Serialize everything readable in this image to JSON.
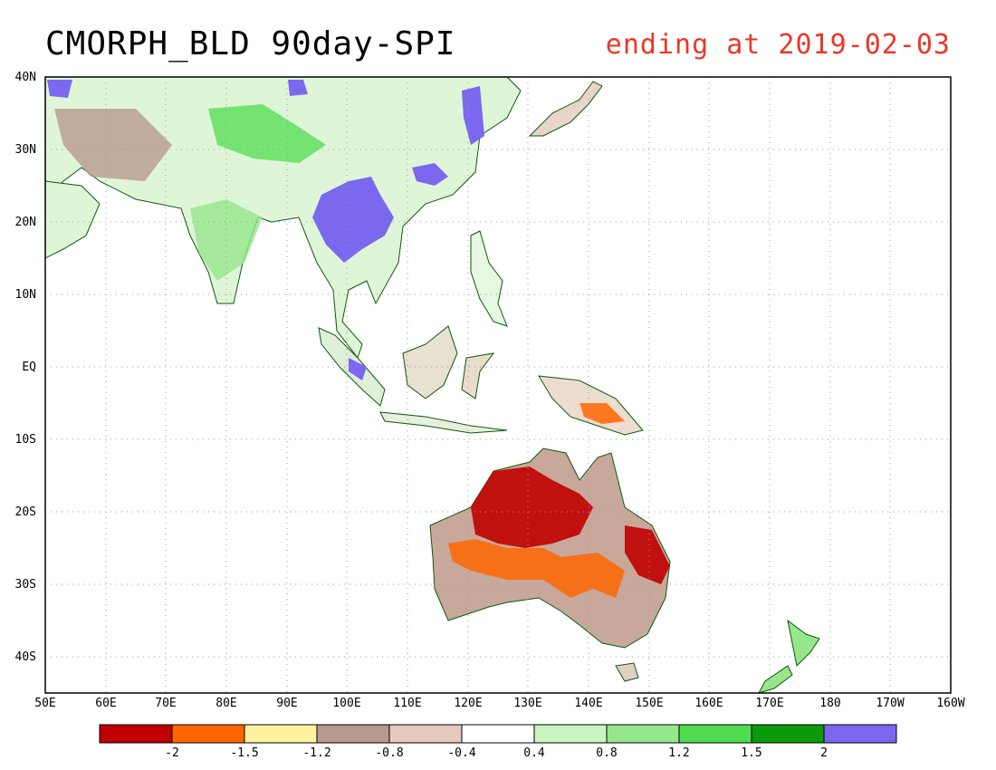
{
  "header": {
    "title": "CMORPH_BLD 90day-SPI",
    "date_label": "ending at 2019-02-03"
  },
  "map": {
    "lat_ticks": [
      "40N",
      "30N",
      "20N",
      "10N",
      "EQ",
      "10S",
      "20S",
      "30S",
      "40S"
    ],
    "lon_ticks": [
      "50E",
      "60E",
      "70E",
      "80E",
      "90E",
      "100E",
      "110E",
      "120E",
      "130E",
      "140E",
      "150E",
      "160E",
      "170E",
      "180",
      "170W",
      "160W"
    ],
    "grid": true
  },
  "colorbar": {
    "colors": [
      "#c00000",
      "#ff6600",
      "#fff3a0",
      "#b89a8c",
      "#e6c8bc",
      "#ffffff",
      "#c8f5c0",
      "#96e68c",
      "#50dc50",
      "#0a9a0a",
      "#7b68ee"
    ],
    "labels": [
      "-2",
      "-1.5",
      "-1.2",
      "-0.8",
      "-0.4",
      "0.4",
      "0.8",
      "1.2",
      "1.5",
      "2"
    ]
  }
}
